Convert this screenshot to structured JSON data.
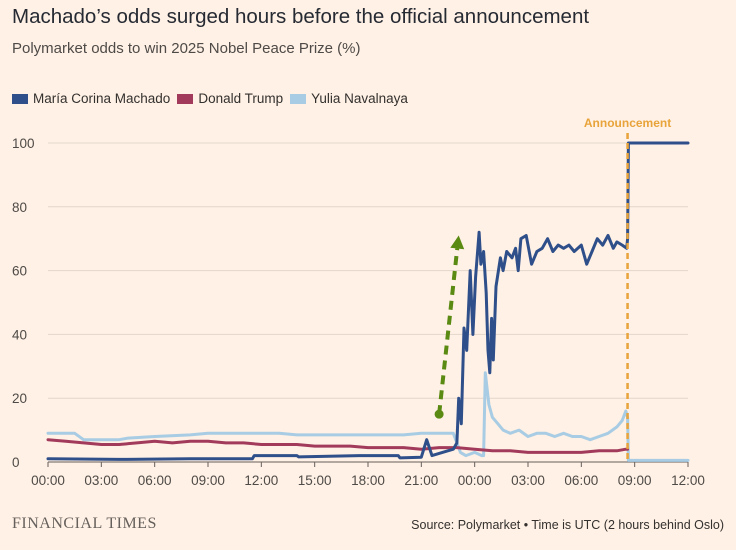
{
  "header": {
    "title": "Machado’s odds surged hours before the official announcement",
    "subtitle": "Polymarket odds to win 2025 Nobel Peace Prize (%)"
  },
  "legend": [
    {
      "label": "María Corina Machado",
      "color": "#2F4F8A"
    },
    {
      "label": "Donald Trump",
      "color": "#A23B5B"
    },
    {
      "label": "Yulia Navalnaya",
      "color": "#A8CCE4"
    }
  ],
  "footer": {
    "brand": "FINANCIAL TIMES",
    "source": "Source: Polymarket • Time is UTC (2 hours behind Oslo)"
  },
  "chart_data": {
    "type": "line",
    "title": "Machado’s odds surged hours before the official announcement",
    "subtitle": "Polymarket odds to win 2025 Nobel Peace Prize (%)",
    "xlabel": "",
    "ylabel": "",
    "x_unit": "hours since 00:00 UTC on the first day",
    "xlim": [
      0,
      36
    ],
    "ylim": [
      0,
      100
    ],
    "x_tick_values": [
      0,
      3,
      6,
      9,
      12,
      15,
      18,
      21,
      24,
      27,
      30,
      33,
      36
    ],
    "x_tick_labels": [
      "00:00",
      "03:00",
      "06:00",
      "09:00",
      "12:00",
      "15:00",
      "18:00",
      "21:00",
      "00:00",
      "03:00",
      "06:00",
      "09:00",
      "12:00"
    ],
    "y_ticks": [
      0,
      20,
      40,
      60,
      80,
      100
    ],
    "grid": "horizontal",
    "legend_position": "top-left",
    "series": [
      {
        "name": "María Corina Machado",
        "color": "#2F4F8A",
        "points": [
          [
            0,
            1
          ],
          [
            4,
            0.8
          ],
          [
            8,
            1
          ],
          [
            11.5,
            1
          ],
          [
            11.6,
            2
          ],
          [
            14,
            2
          ],
          [
            14.1,
            1.6
          ],
          [
            17.5,
            2
          ],
          [
            19.7,
            2
          ],
          [
            19.8,
            1.3
          ],
          [
            21,
            1.5
          ],
          [
            21.3,
            7
          ],
          [
            21.6,
            2
          ],
          [
            22.8,
            4
          ],
          [
            23,
            6
          ],
          [
            23.1,
            20
          ],
          [
            23.25,
            12
          ],
          [
            23.4,
            42
          ],
          [
            23.55,
            35
          ],
          [
            23.75,
            60
          ],
          [
            23.9,
            40
          ],
          [
            24.05,
            58
          ],
          [
            24.25,
            72
          ],
          [
            24.35,
            62
          ],
          [
            24.5,
            66
          ],
          [
            24.65,
            53
          ],
          [
            24.75,
            35
          ],
          [
            24.85,
            28
          ],
          [
            24.95,
            45
          ],
          [
            25.05,
            32
          ],
          [
            25.2,
            55
          ],
          [
            25.45,
            64
          ],
          [
            25.6,
            60
          ],
          [
            25.8,
            66
          ],
          [
            26.1,
            64
          ],
          [
            26.3,
            67
          ],
          [
            26.45,
            60
          ],
          [
            26.6,
            70
          ],
          [
            26.9,
            71
          ],
          [
            27.2,
            62
          ],
          [
            27.5,
            66
          ],
          [
            27.8,
            67
          ],
          [
            28.1,
            70
          ],
          [
            28.4,
            66
          ],
          [
            28.7,
            68
          ],
          [
            29,
            67
          ],
          [
            29.3,
            68
          ],
          [
            29.6,
            66
          ],
          [
            30,
            68
          ],
          [
            30.3,
            62
          ],
          [
            30.6,
            66
          ],
          [
            30.9,
            70
          ],
          [
            31.2,
            68
          ],
          [
            31.5,
            71
          ],
          [
            31.8,
            67
          ],
          [
            32,
            69
          ],
          [
            32.3,
            68
          ],
          [
            32.55,
            67
          ],
          [
            32.6,
            70
          ],
          [
            32.65,
            100
          ],
          [
            36,
            100
          ]
        ]
      },
      {
        "name": "Donald Trump",
        "color": "#A23B5B",
        "points": [
          [
            0,
            7
          ],
          [
            1,
            6.5
          ],
          [
            2,
            6
          ],
          [
            3,
            5.5
          ],
          [
            4,
            5.5
          ],
          [
            5,
            6
          ],
          [
            6,
            6.5
          ],
          [
            7,
            6
          ],
          [
            8,
            6.5
          ],
          [
            9,
            6.5
          ],
          [
            10,
            6
          ],
          [
            11,
            6
          ],
          [
            12,
            5.5
          ],
          [
            13,
            5.5
          ],
          [
            14,
            5.5
          ],
          [
            15,
            5
          ],
          [
            16,
            5
          ],
          [
            17,
            5
          ],
          [
            18,
            4.5
          ],
          [
            19,
            4.5
          ],
          [
            20,
            4.5
          ],
          [
            21,
            4
          ],
          [
            22,
            4.5
          ],
          [
            23,
            4.5
          ],
          [
            24,
            4
          ],
          [
            25,
            3.5
          ],
          [
            26,
            3.5
          ],
          [
            27,
            3
          ],
          [
            28,
            3
          ],
          [
            29,
            3
          ],
          [
            30,
            3
          ],
          [
            31,
            3.5
          ],
          [
            32,
            3.5
          ],
          [
            32.5,
            4
          ],
          [
            32.6,
            4
          ]
        ]
      },
      {
        "name": "Yulia Navalnaya",
        "color": "#A8CCE4",
        "points": [
          [
            0,
            9
          ],
          [
            1.5,
            9
          ],
          [
            2,
            7
          ],
          [
            4,
            7
          ],
          [
            4.5,
            7.5
          ],
          [
            6,
            8
          ],
          [
            8,
            8.5
          ],
          [
            9,
            9
          ],
          [
            10,
            9
          ],
          [
            13,
            9
          ],
          [
            14,
            8.5
          ],
          [
            16,
            8.5
          ],
          [
            18,
            8.5
          ],
          [
            20,
            8.5
          ],
          [
            21,
            9
          ],
          [
            22.8,
            9
          ],
          [
            23,
            6
          ],
          [
            23.2,
            3
          ],
          [
            23.5,
            2
          ],
          [
            24,
            3
          ],
          [
            24.4,
            2
          ],
          [
            24.5,
            2
          ],
          [
            24.6,
            28
          ],
          [
            24.8,
            18
          ],
          [
            25,
            14
          ],
          [
            25.3,
            12
          ],
          [
            25.6,
            10
          ],
          [
            26,
            9
          ],
          [
            26.5,
            10
          ],
          [
            27,
            8
          ],
          [
            27.5,
            9
          ],
          [
            28,
            9
          ],
          [
            28.5,
            8
          ],
          [
            29,
            9
          ],
          [
            29.5,
            8
          ],
          [
            30,
            8
          ],
          [
            30.5,
            7
          ],
          [
            31,
            8
          ],
          [
            31.5,
            9
          ],
          [
            32,
            11
          ],
          [
            32.3,
            13
          ],
          [
            32.5,
            16
          ],
          [
            32.6,
            14
          ],
          [
            32.65,
            0.5
          ],
          [
            36,
            0.5
          ]
        ]
      }
    ],
    "annotations": [
      {
        "type": "vertical-line",
        "x": 32.6,
        "label": "Announcement",
        "color": "#E8A33A"
      },
      {
        "type": "arrow",
        "from": [
          22,
          15
        ],
        "to": [
          23.1,
          71
        ],
        "color": "#5A8A12"
      }
    ]
  }
}
